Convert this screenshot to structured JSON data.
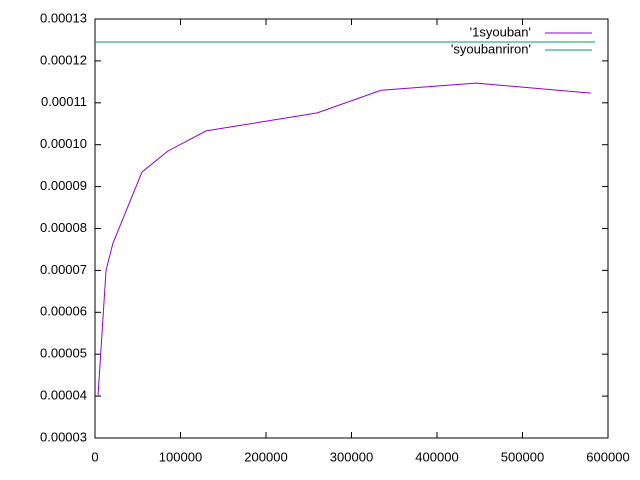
{
  "chart_data": {
    "type": "line",
    "xlim": [
      0,
      600000
    ],
    "xticks": [
      0,
      100000,
      200000,
      300000,
      400000,
      500000,
      600000
    ],
    "ylim": [
      3e-05,
      0.00013
    ],
    "yticks": [
      {
        "value": 3e-05,
        "label": "0.00003"
      },
      {
        "value": 4e-05,
        "label": "0.00004"
      },
      {
        "value": 5e-05,
        "label": "0.00005"
      },
      {
        "value": 6e-05,
        "label": "0.00006"
      },
      {
        "value": 7e-05,
        "label": "0.00007"
      },
      {
        "value": 8e-05,
        "label": "0.00008"
      },
      {
        "value": 9e-05,
        "label": "0.00009"
      },
      {
        "value": 0.0001,
        "label": "0.00010"
      },
      {
        "value": 0.00011,
        "label": "0.00011"
      },
      {
        "value": 0.00012,
        "label": "0.00012"
      },
      {
        "value": 0.00013,
        "label": "0.00013"
      }
    ],
    "legend": "top-right",
    "series": [
      {
        "name": "'1syouban'",
        "color": "#9400d3",
        "x": [
          3500,
          12900,
          21000,
          55000,
          85400,
          130000,
          260000,
          334500,
          445600,
          580000
        ],
        "values": [
          4e-05,
          7e-05,
          7.65e-05,
          9.35e-05,
          9.85e-05,
          0.0001033,
          0.0001076,
          0.000113,
          0.0001147,
          0.0001123
        ]
      },
      {
        "name": "'syoubanriron'",
        "color": "#009e73",
        "x": [
          0,
          585000
        ],
        "values": [
          0.0001245,
          0.0001245
        ]
      }
    ]
  }
}
